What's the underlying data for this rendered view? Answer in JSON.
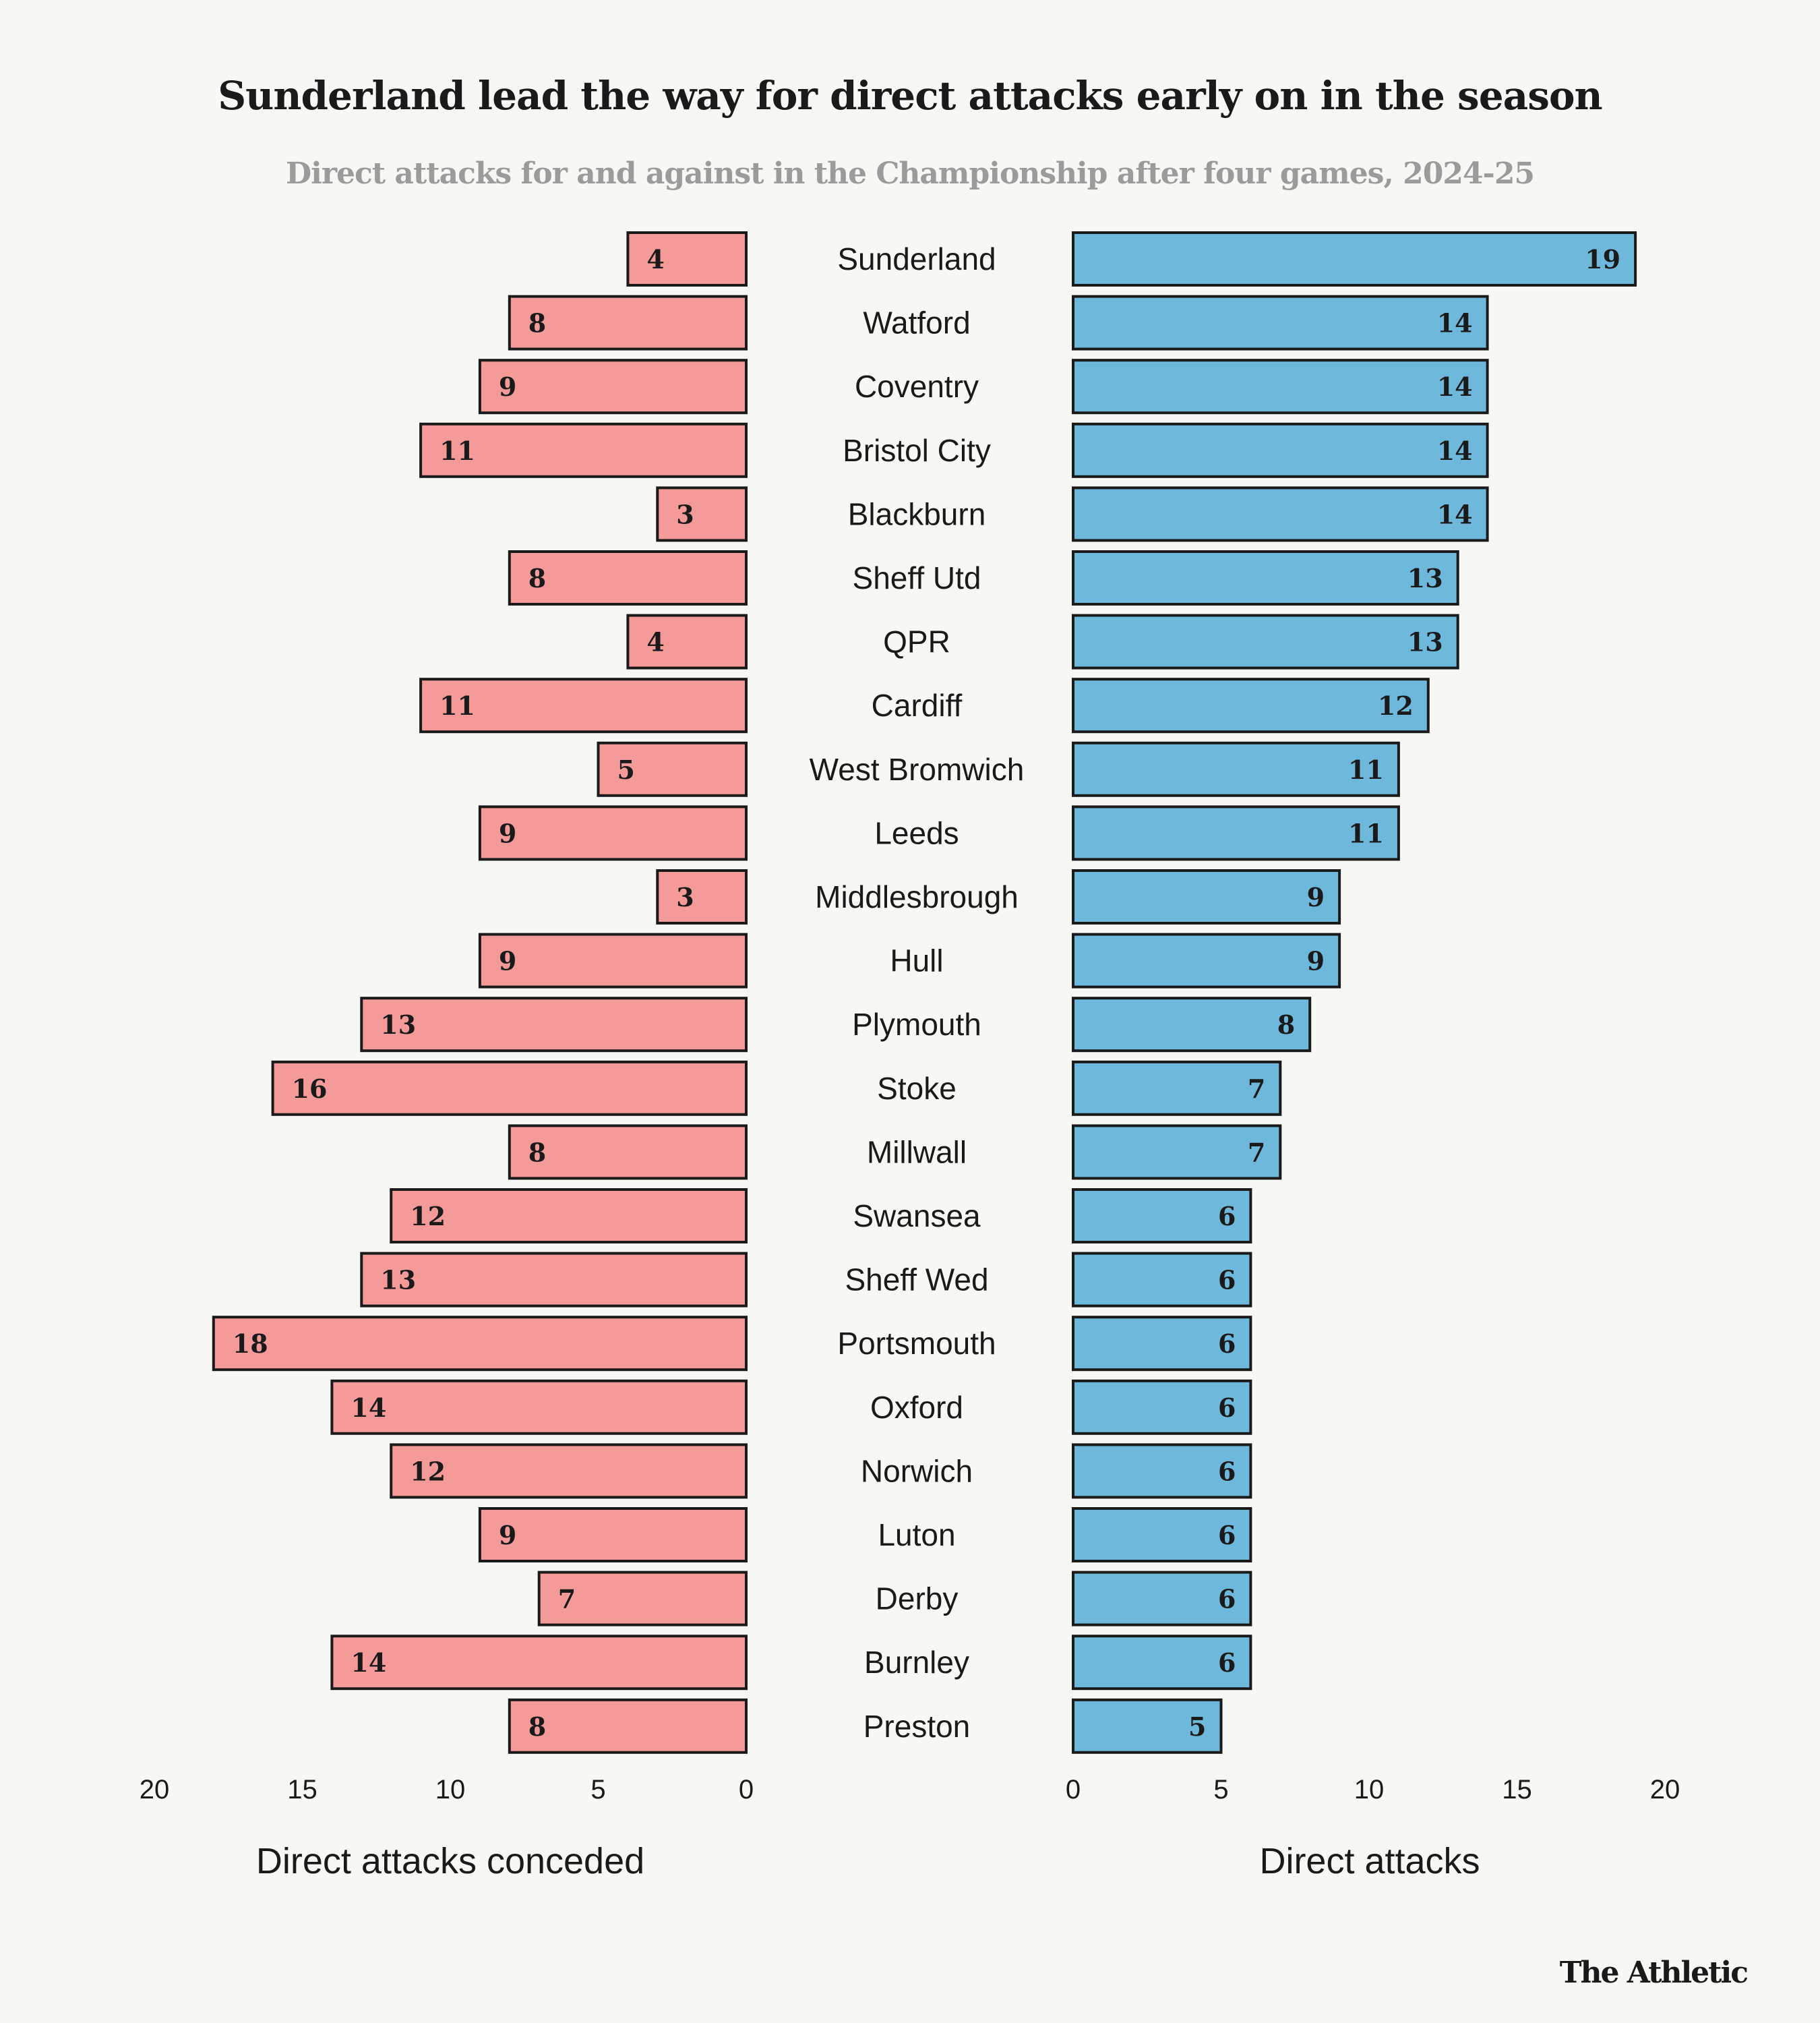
{
  "header": {
    "title": "Sunderland lead the way for direct attacks early on in the season",
    "subtitle": "Direct attacks for and against in the Championship after four games, 2024-25"
  },
  "brand": "The Athletic",
  "colors": {
    "conceded": "#f49a99",
    "attacks": "#6eb8dc",
    "stroke": "#1a1a1a",
    "background": "#f7f7f3"
  },
  "chart_data": {
    "type": "bar",
    "orientation": "horizontal-diverging",
    "title": "Sunderland lead the way for direct attacks early on in the season",
    "subtitle": "Direct attacks for and against in the Championship after four games, 2024-25",
    "categories": [
      "Sunderland",
      "Watford",
      "Coventry",
      "Bristol City",
      "Blackburn",
      "Sheff Utd",
      "QPR",
      "Cardiff",
      "West Bromwich",
      "Leeds",
      "Middlesbrough",
      "Hull",
      "Plymouth",
      "Stoke",
      "Millwall",
      "Swansea",
      "Sheff Wed",
      "Portsmouth",
      "Oxford",
      "Norwich",
      "Luton",
      "Derby",
      "Burnley",
      "Preston"
    ],
    "series": [
      {
        "name": "Direct attacks conceded",
        "side": "left",
        "values": [
          4,
          8,
          9,
          11,
          3,
          8,
          4,
          11,
          5,
          9,
          3,
          9,
          13,
          16,
          8,
          12,
          13,
          18,
          14,
          12,
          9,
          7,
          14,
          8
        ]
      },
      {
        "name": "Direct attacks",
        "side": "right",
        "values": [
          19,
          14,
          14,
          14,
          14,
          13,
          13,
          12,
          11,
          11,
          9,
          9,
          8,
          7,
          7,
          6,
          6,
          6,
          6,
          6,
          6,
          6,
          6,
          5
        ]
      }
    ],
    "left_axis": {
      "label": "Direct attacks conceded",
      "range": [
        20,
        0
      ],
      "ticks": [
        "20",
        "15",
        "10",
        "5",
        "0"
      ]
    },
    "right_axis": {
      "label": "Direct attacks",
      "range": [
        0,
        20
      ],
      "ticks": [
        "0",
        "5",
        "10",
        "15",
        "20"
      ]
    },
    "grid": false,
    "legend": "none"
  }
}
